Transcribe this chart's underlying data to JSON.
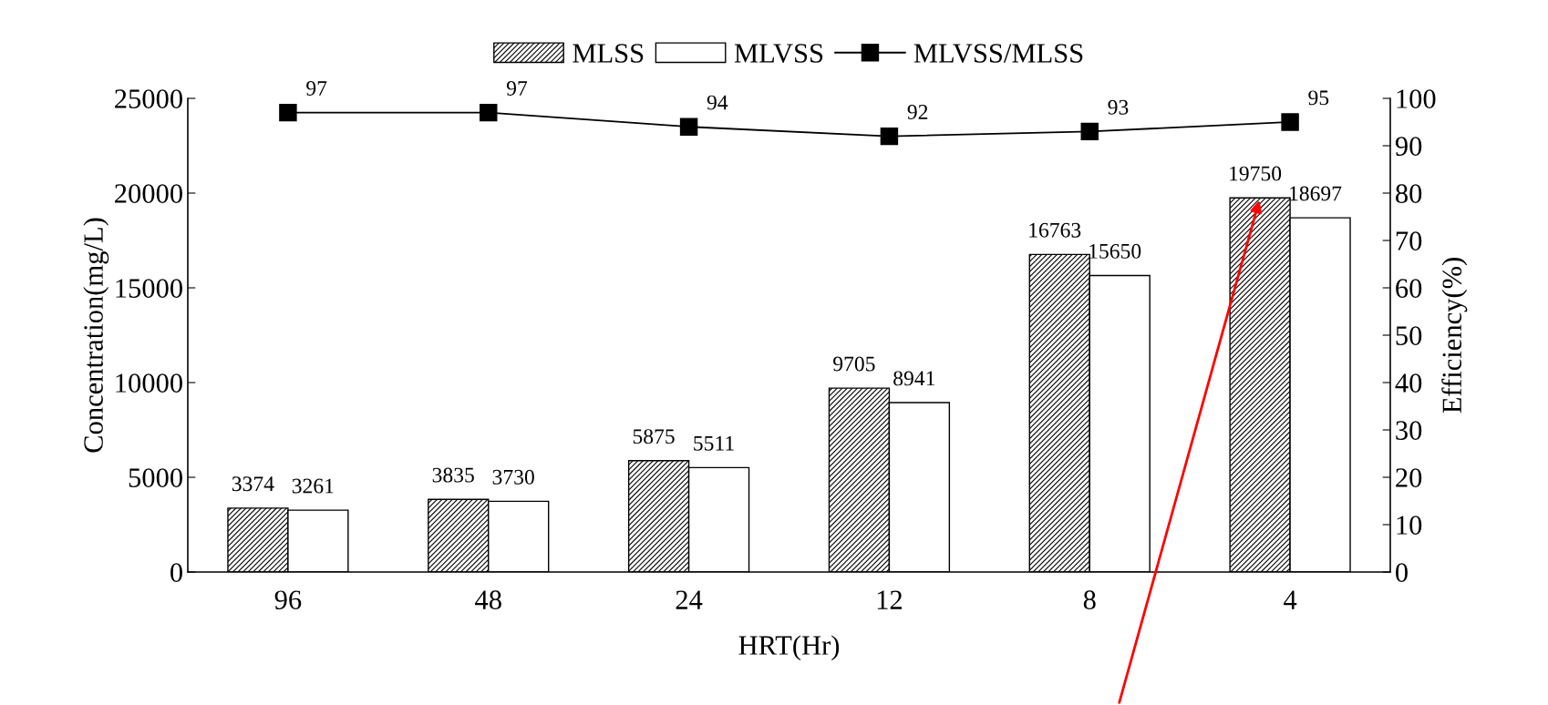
{
  "chart_data": {
    "type": "bar",
    "xlabel": "HRT(Hr)",
    "ylabel": "Concentration(mg/L)",
    "y2label": "Efficiency(%)",
    "categories": [
      "96",
      "48",
      "24",
      "12",
      "8",
      "4"
    ],
    "series": [
      {
        "name": "MLSS",
        "color": "#000000",
        "values": [
          3374,
          3835,
          5875,
          9705,
          16763,
          19750
        ]
      },
      {
        "name": "MLVSS",
        "color": "#ffffff",
        "values": [
          3261,
          3730,
          5511,
          8941,
          15650,
          18697
        ]
      },
      {
        "name": "MLVSS/MLSS",
        "type": "line",
        "axis": "y2",
        "color": "#000000",
        "values": [
          97,
          97,
          94,
          92,
          93,
          95
        ]
      }
    ],
    "ylim": [
      0,
      25000
    ],
    "yticks": [
      0,
      5000,
      10000,
      15000,
      20000,
      25000
    ],
    "y2lim": [
      0,
      100
    ],
    "y2ticks": [
      0,
      10,
      20,
      30,
      40,
      50,
      60,
      70,
      80,
      90,
      100
    ],
    "data_labels": true,
    "legend": "top",
    "grid": false,
    "marker": "square",
    "line_style": "solid"
  }
}
